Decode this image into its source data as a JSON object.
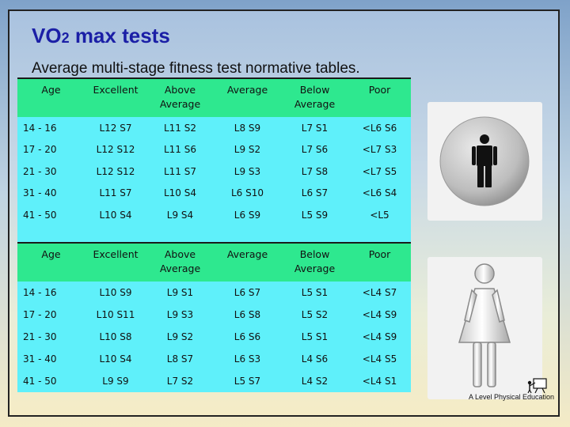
{
  "title": {
    "main": "VO",
    "sub": "2",
    "rest": " max tests"
  },
  "subtitle": "Average multi-stage fitness test normative tables.",
  "columns": {
    "age": "Age",
    "excellent": "Excellent",
    "above_1": "Above",
    "above_2": "Average",
    "average": "Average",
    "below_1": "Below",
    "below_2": "Average",
    "poor": "Poor"
  },
  "men_rows": [
    {
      "age": "14 - 16",
      "excellent": "L12 S7",
      "above": "L11 S2",
      "average": "L8 S9",
      "below": "L7 S1",
      "poor": "<L6 S6"
    },
    {
      "age": "17 - 20",
      "excellent": "L12 S12",
      "above": "L11 S6",
      "average": "L9 S2",
      "below": "L7 S6",
      "poor": "<L7 S3"
    },
    {
      "age": "21 - 30",
      "excellent": "L12 S12",
      "above": "L11 S7",
      "average": "L9 S3",
      "below": "L7 S8",
      "poor": "<L7 S5"
    },
    {
      "age": "31 - 40",
      "excellent": "L11 S7",
      "above": "L10 S4",
      "average": "L6 S10",
      "below": "L6 S7",
      "poor": "<L6 S4"
    },
    {
      "age": "41 - 50",
      "excellent": "L10 S4",
      "above": "L9 S4",
      "average": "L6 S9",
      "below": "L5 S9",
      "poor": "<L5"
    }
  ],
  "women_rows": [
    {
      "age": "14 - 16",
      "excellent": "L10 S9",
      "above": "L9 S1",
      "average": "L6 S7",
      "below": "L5 S1",
      "poor": "<L4 S7"
    },
    {
      "age": "17 - 20",
      "excellent": "L10 S11",
      "above": "L9 S3",
      "average": "L6 S8",
      "below": "L5 S2",
      "poor": "<L4 S9"
    },
    {
      "age": "21 - 30",
      "excellent": "L10 S8",
      "above": "L9 S2",
      "average": "L6 S6",
      "below": "L5 S1",
      "poor": "<L4 S9"
    },
    {
      "age": "31 - 40",
      "excellent": "L10 S4",
      "above": "L8 S7",
      "average": "L6 S3",
      "below": "L4 S6",
      "poor": "<L4 S5"
    },
    {
      "age": "41 - 50",
      "excellent": "L9 S9",
      "above": "L7 S2",
      "average": "L5 S7",
      "below": "L4 S2",
      "poor": "<L4 S1"
    }
  ],
  "logo_text": "A Level Physical Education",
  "colors": {
    "title": "#1b1fa6",
    "header_bg": "#2ee88f",
    "cell_bg": "#5ff0fa"
  },
  "icons": {
    "men": "man-sign-icon",
    "women": "woman-sign-icon",
    "logo": "lecturer-board-icon"
  }
}
